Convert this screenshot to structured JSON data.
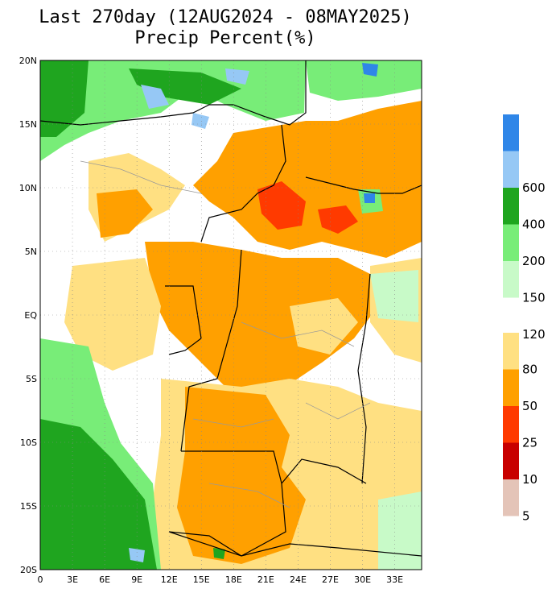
{
  "title": "Last 270day (12AUG2024 - 08MAY2025)",
  "subtitle": "Precip Percent(%)",
  "map": {
    "lat_labels": [
      "20N",
      "15N",
      "10N",
      "5N",
      "EQ",
      "5S",
      "10S",
      "15S",
      "20S"
    ],
    "lon_labels": [
      "0",
      "3E",
      "6E",
      "9E",
      "12E",
      "15E",
      "18E",
      "21E",
      "24E",
      "27E",
      "30E",
      "33E"
    ],
    "lat_range": [
      -20,
      20
    ],
    "lon_range": [
      0,
      35.5
    ]
  },
  "legend": {
    "upper": [
      {
        "color": "#2f86e8",
        "label": ""
      },
      {
        "color": "#96c8f5",
        "label": "600"
      },
      {
        "color": "#1fa51f",
        "label": "400"
      },
      {
        "color": "#78ed78",
        "label": "200"
      },
      {
        "color": "#c8fac8",
        "label": "150"
      },
      {
        "color": "#ffffff",
        "label": "120"
      }
    ],
    "lower": [
      {
        "color": "#ffe082",
        "label": "80"
      },
      {
        "color": "#ffa000",
        "label": "50"
      },
      {
        "color": "#ff3a00",
        "label": "25"
      },
      {
        "color": "#c80000",
        "label": "10"
      },
      {
        "color": "#e4c4b8",
        "label": "5"
      }
    ]
  },
  "colors": {
    "dry_light": "#ffe082",
    "dry_mid": "#ffa000",
    "dry_strong": "#ff3a00",
    "wet_light": "#c8fac8",
    "wet_mid": "#78ed78",
    "wet_strong": "#1fa51f",
    "wet_extreme": "#96c8f5",
    "wet_max": "#2f86e8"
  }
}
